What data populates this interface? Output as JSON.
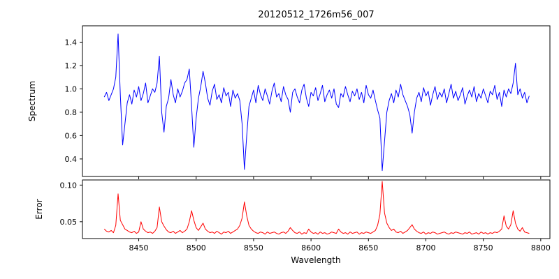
{
  "figure": {
    "title": "20120512_1726m56_007",
    "background": "#ffffff",
    "xlabel": "Wavelength"
  },
  "chart_data": [
    {
      "type": "line",
      "name": "spectrum",
      "title": "20120512_1726m56_007",
      "ylabel": "Spectrum",
      "color": "#0000ff",
      "xlim": [
        8401,
        8808
      ],
      "ylim": [
        0.25,
        1.54
      ],
      "yticks": [
        0.4,
        0.6,
        0.8,
        1.0,
        1.2,
        1.4
      ],
      "yticklabels": [
        "0.4",
        "0.6",
        "0.8",
        "1.0",
        "1.2",
        "1.4"
      ],
      "xticks": [
        8450,
        8500,
        8550,
        8600,
        8650,
        8700,
        8750,
        8800
      ],
      "grid": false,
      "x_start": 8420,
      "x_step": 2,
      "values": [
        0.93,
        0.97,
        0.9,
        0.95,
        1.0,
        1.1,
        1.47,
        0.95,
        0.52,
        0.7,
        0.88,
        0.95,
        0.87,
        0.99,
        0.93,
        1.02,
        0.9,
        0.96,
        1.05,
        0.88,
        0.94,
        1.0,
        0.97,
        1.05,
        1.28,
        0.8,
        0.63,
        0.85,
        0.92,
        1.08,
        0.95,
        0.88,
        1.0,
        0.93,
        0.98,
        1.05,
        1.08,
        1.17,
        0.85,
        0.5,
        0.75,
        0.92,
        1.02,
        1.15,
        1.05,
        0.92,
        0.86,
        0.98,
        1.04,
        0.91,
        0.95,
        0.88,
        1.01,
        0.94,
        0.97,
        0.85,
        0.99,
        0.92,
        0.96,
        0.9,
        0.7,
        0.31,
        0.6,
        0.85,
        0.92,
        0.99,
        0.88,
        1.03,
        0.95,
        0.9,
        1.0,
        0.94,
        0.87,
        0.98,
        1.05,
        0.93,
        0.96,
        0.89,
        1.02,
        0.95,
        0.91,
        0.8,
        0.97,
        1.0,
        0.93,
        0.88,
        0.99,
        1.04,
        0.92,
        0.85,
        0.97,
        0.94,
        1.01,
        0.9,
        0.96,
        1.03,
        0.89,
        0.95,
        0.99,
        0.92,
        1.0,
        0.87,
        0.84,
        0.96,
        0.93,
        1.02,
        0.95,
        0.89,
        0.98,
        0.94,
        1.0,
        0.91,
        0.97,
        0.88,
        1.03,
        0.95,
        0.92,
        0.99,
        0.9,
        0.82,
        0.75,
        0.3,
        0.55,
        0.8,
        0.9,
        0.96,
        0.88,
        0.99,
        0.93,
        1.04,
        0.95,
        0.9,
        0.85,
        0.78,
        0.62,
        0.8,
        0.92,
        0.97,
        0.89,
        1.01,
        0.94,
        0.98,
        0.86,
        0.95,
        1.02,
        0.91,
        0.97,
        0.93,
        1.0,
        0.88,
        0.96,
        1.04,
        0.92,
        0.98,
        0.9,
        0.95,
        1.01,
        0.87,
        0.94,
        0.99,
        0.93,
        1.02,
        0.89,
        0.96,
        0.92,
        1.0,
        0.94,
        0.88,
        0.98,
        0.95,
        1.03,
        0.91,
        0.97,
        0.85,
        0.99,
        0.93,
        1.0,
        0.96,
        1.05,
        1.22,
        0.95,
        1.0,
        0.92,
        0.97,
        0.88,
        0.94
      ]
    },
    {
      "type": "line",
      "name": "error",
      "ylabel": "Error",
      "xlabel": "Wavelength",
      "color": "#ff0000",
      "xlim": [
        8401,
        8808
      ],
      "ylim": [
        0.027,
        0.107
      ],
      "yticks": [
        0.05,
        0.1
      ],
      "yticklabels": [
        "0.05",
        "0.10"
      ],
      "xticks": [
        8450,
        8500,
        8550,
        8600,
        8650,
        8700,
        8750,
        8800
      ],
      "xticklabels": [
        "8450",
        "8500",
        "8550",
        "8600",
        "8650",
        "8700",
        "8750",
        "8800"
      ],
      "grid": false,
      "x_start": 8420,
      "x_step": 2,
      "values": [
        0.04,
        0.037,
        0.036,
        0.038,
        0.035,
        0.045,
        0.088,
        0.052,
        0.046,
        0.04,
        0.038,
        0.036,
        0.035,
        0.037,
        0.034,
        0.036,
        0.05,
        0.04,
        0.037,
        0.035,
        0.036,
        0.034,
        0.037,
        0.042,
        0.07,
        0.05,
        0.044,
        0.039,
        0.036,
        0.035,
        0.037,
        0.034,
        0.036,
        0.038,
        0.035,
        0.037,
        0.04,
        0.05,
        0.065,
        0.052,
        0.042,
        0.038,
        0.043,
        0.048,
        0.04,
        0.037,
        0.035,
        0.036,
        0.034,
        0.037,
        0.035,
        0.033,
        0.036,
        0.035,
        0.037,
        0.034,
        0.036,
        0.038,
        0.04,
        0.045,
        0.055,
        0.077,
        0.058,
        0.045,
        0.04,
        0.037,
        0.035,
        0.034,
        0.036,
        0.035,
        0.033,
        0.036,
        0.034,
        0.035,
        0.036,
        0.034,
        0.033,
        0.035,
        0.036,
        0.034,
        0.037,
        0.042,
        0.038,
        0.035,
        0.034,
        0.036,
        0.033,
        0.035,
        0.034,
        0.04,
        0.036,
        0.034,
        0.035,
        0.033,
        0.036,
        0.034,
        0.035,
        0.033,
        0.034,
        0.036,
        0.035,
        0.034,
        0.04,
        0.036,
        0.034,
        0.035,
        0.033,
        0.036,
        0.034,
        0.035,
        0.036,
        0.033,
        0.035,
        0.034,
        0.036,
        0.035,
        0.034,
        0.036,
        0.038,
        0.045,
        0.06,
        0.105,
        0.062,
        0.048,
        0.042,
        0.038,
        0.04,
        0.036,
        0.035,
        0.037,
        0.034,
        0.036,
        0.038,
        0.042,
        0.046,
        0.04,
        0.037,
        0.035,
        0.034,
        0.036,
        0.033,
        0.035,
        0.034,
        0.036,
        0.035,
        0.033,
        0.034,
        0.035,
        0.036,
        0.034,
        0.033,
        0.035,
        0.034,
        0.036,
        0.035,
        0.034,
        0.033,
        0.035,
        0.034,
        0.036,
        0.033,
        0.034,
        0.035,
        0.033,
        0.036,
        0.034,
        0.035,
        0.033,
        0.035,
        0.034,
        0.036,
        0.035,
        0.037,
        0.04,
        0.058,
        0.044,
        0.04,
        0.046,
        0.065,
        0.048,
        0.04,
        0.037,
        0.042,
        0.036,
        0.035,
        0.034
      ]
    }
  ]
}
